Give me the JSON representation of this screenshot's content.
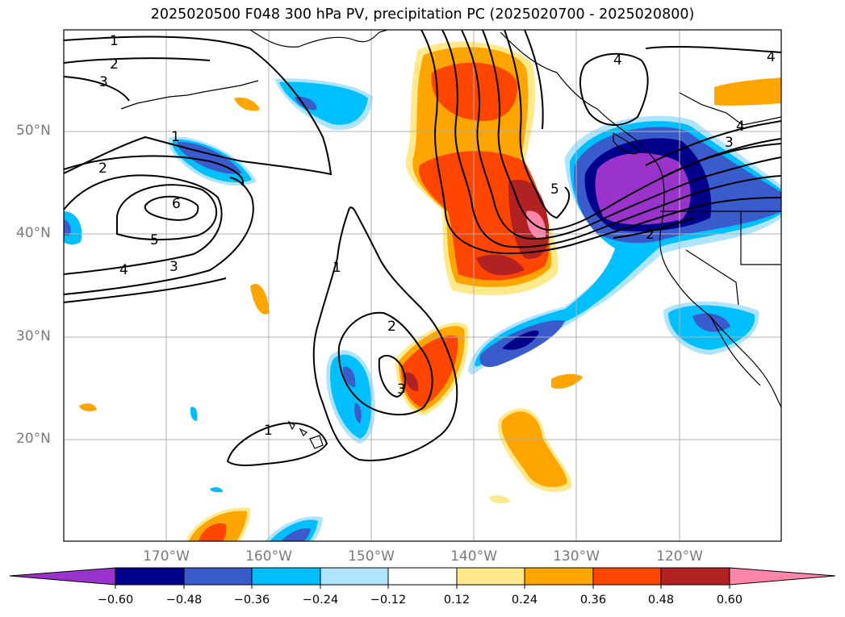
{
  "title": "2025020500 F048 300 hPa PV, precipitation PC (2025020700 - 2025020800)",
  "latitude_labels": [
    "50°N",
    "40°N",
    "30°N",
    "20°N"
  ],
  "longitude_labels": [
    "170°W",
    "160°W",
    "150°W",
    "140°W",
    "130°W",
    "120°W"
  ],
  "contour_labels": [
    "1",
    "2",
    "3",
    "1",
    "2",
    "6",
    "5",
    "4",
    "3",
    "1",
    "2",
    "3",
    "1",
    "5",
    "4",
    "4",
    "4",
    "3",
    "2"
  ],
  "colorbar": {
    "tick_labels": [
      "−0.60",
      "−0.48",
      "−0.36",
      "−0.24",
      "−0.12",
      "0.12",
      "0.24",
      "0.36",
      "0.48",
      "0.60"
    ],
    "colors": [
      "#9933cc",
      "#00008b",
      "#3a5bcc",
      "#00bfff",
      "#aee4ff",
      "#ffffff",
      "#ffe98a",
      "#ffa500",
      "#ff4500",
      "#b22222",
      "#ff85aa"
    ]
  },
  "map_colors": {
    "purple": "#9933cc",
    "navy": "#00008b",
    "royal": "#3a5bcc",
    "sky": "#00bfff",
    "lightblue": "#aee4ff",
    "yellow": "#ffe98a",
    "orange": "#ffa500",
    "redorange": "#ff4500",
    "firebrick": "#b22222",
    "pink": "#ff85aa"
  }
}
